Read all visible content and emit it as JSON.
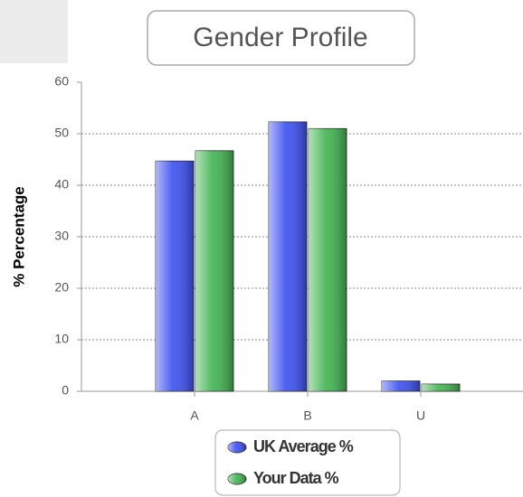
{
  "chart_data": {
    "type": "bar",
    "title": "Gender Profile",
    "y_label": "% Percentage",
    "categories": [
      "A",
      "B",
      "U"
    ],
    "series": [
      {
        "name": "UK Average %",
        "color": "#3a4ff0",
        "values": [
          44.7,
          52.3,
          2
        ]
      },
      {
        "name": "Your Data %",
        "color": "#3fb34f",
        "values": [
          46.7,
          51,
          1.4
        ]
      }
    ],
    "ylim": [
      0,
      60
    ],
    "yticks": [
      0,
      10,
      20,
      30,
      40,
      50,
      60
    ],
    "grid": true,
    "legend": "bottom"
  }
}
